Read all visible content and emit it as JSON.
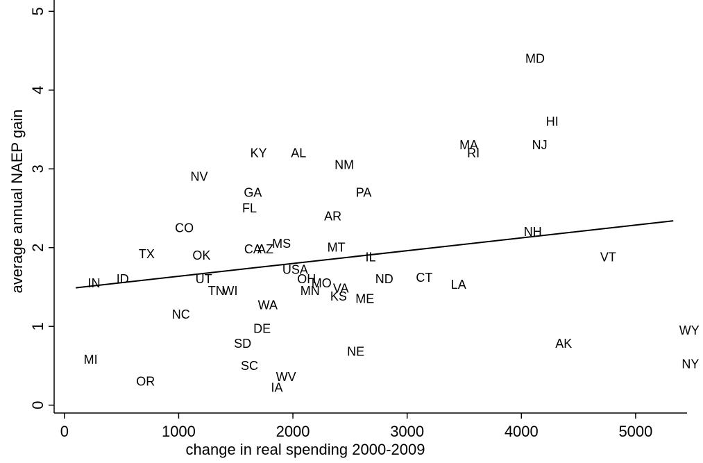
{
  "chart_data": {
    "type": "scatter",
    "title": "",
    "xlabel": "change in real spending 2000-2009",
    "ylabel": "average annual NAEP gain",
    "xlim": [
      -90,
      5450
    ],
    "ylim": [
      -0.1,
      5.1
    ],
    "x_ticks": [
      0,
      1000,
      2000,
      3000,
      4000,
      5000
    ],
    "x_tick_labels": [
      "0",
      "1000",
      "2000",
      "3000",
      "4000",
      "5000"
    ],
    "y_ticks": [
      0,
      1,
      2,
      3,
      4,
      5
    ],
    "y_tick_labels": [
      "0",
      "1",
      "2",
      "3",
      "4",
      "5"
    ],
    "grid": false,
    "legend": "none",
    "fit_line": {
      "x": [
        100,
        5330
      ],
      "y": [
        1.49,
        2.34
      ]
    },
    "points": [
      {
        "label": "MD",
        "x": 4120,
        "y": 4.4
      },
      {
        "label": "HI",
        "x": 4270,
        "y": 3.6
      },
      {
        "label": "MA",
        "x": 3540,
        "y": 3.3
      },
      {
        "label": "RI",
        "x": 3580,
        "y": 3.2
      },
      {
        "label": "NJ",
        "x": 4160,
        "y": 3.3
      },
      {
        "label": "KY",
        "x": 1700,
        "y": 3.2
      },
      {
        "label": "AL",
        "x": 2050,
        "y": 3.2
      },
      {
        "label": "NM",
        "x": 2450,
        "y": 3.05
      },
      {
        "label": "NV",
        "x": 1180,
        "y": 2.9
      },
      {
        "label": "GA",
        "x": 1650,
        "y": 2.7
      },
      {
        "label": "PA",
        "x": 2620,
        "y": 2.7
      },
      {
        "label": "FL",
        "x": 1620,
        "y": 2.5
      },
      {
        "label": "AR",
        "x": 2350,
        "y": 2.4
      },
      {
        "label": "CO",
        "x": 1050,
        "y": 2.25
      },
      {
        "label": "NH",
        "x": 4100,
        "y": 2.2
      },
      {
        "label": "MS",
        "x": 1900,
        "y": 2.05
      },
      {
        "label": "MT",
        "x": 2380,
        "y": 2.0
      },
      {
        "label": "CA",
        "x": 1650,
        "y": 1.98
      },
      {
        "label": "AZ",
        "x": 1760,
        "y": 1.98
      },
      {
        "label": "TX",
        "x": 720,
        "y": 1.92
      },
      {
        "label": "OK",
        "x": 1200,
        "y": 1.9
      },
      {
        "label": "IL",
        "x": 2680,
        "y": 1.88
      },
      {
        "label": "VT",
        "x": 4760,
        "y": 1.88
      },
      {
        "label": "USA",
        "x": 2020,
        "y": 1.72
      },
      {
        "label": "OH",
        "x": 2120,
        "y": 1.6
      },
      {
        "label": "MO",
        "x": 2250,
        "y": 1.55
      },
      {
        "label": "ND",
        "x": 2800,
        "y": 1.6
      },
      {
        "label": "CT",
        "x": 3150,
        "y": 1.62
      },
      {
        "label": "LA",
        "x": 3450,
        "y": 1.53
      },
      {
        "label": "UT",
        "x": 1220,
        "y": 1.6
      },
      {
        "label": "ID",
        "x": 510,
        "y": 1.6
      },
      {
        "label": "IN",
        "x": 260,
        "y": 1.55
      },
      {
        "label": "VA",
        "x": 2420,
        "y": 1.48
      },
      {
        "label": "MN",
        "x": 2150,
        "y": 1.45
      },
      {
        "label": "KS",
        "x": 2400,
        "y": 1.38
      },
      {
        "label": "ME",
        "x": 2630,
        "y": 1.35
      },
      {
        "label": "TN",
        "x": 1330,
        "y": 1.45
      },
      {
        "label": "WI",
        "x": 1450,
        "y": 1.45
      },
      {
        "label": "WA",
        "x": 1780,
        "y": 1.27
      },
      {
        "label": "NC",
        "x": 1020,
        "y": 1.15
      },
      {
        "label": "DE",
        "x": 1730,
        "y": 0.97
      },
      {
        "label": "WY",
        "x": 5470,
        "y": 0.95
      },
      {
        "label": "SD",
        "x": 1560,
        "y": 0.78
      },
      {
        "label": "AK",
        "x": 4370,
        "y": 0.78
      },
      {
        "label": "NE",
        "x": 2550,
        "y": 0.68
      },
      {
        "label": "MI",
        "x": 230,
        "y": 0.58
      },
      {
        "label": "NY",
        "x": 5480,
        "y": 0.52
      },
      {
        "label": "SC",
        "x": 1620,
        "y": 0.5
      },
      {
        "label": "WV",
        "x": 1940,
        "y": 0.36
      },
      {
        "label": "OR",
        "x": 710,
        "y": 0.3
      },
      {
        "label": "IA",
        "x": 1860,
        "y": 0.22
      }
    ]
  }
}
